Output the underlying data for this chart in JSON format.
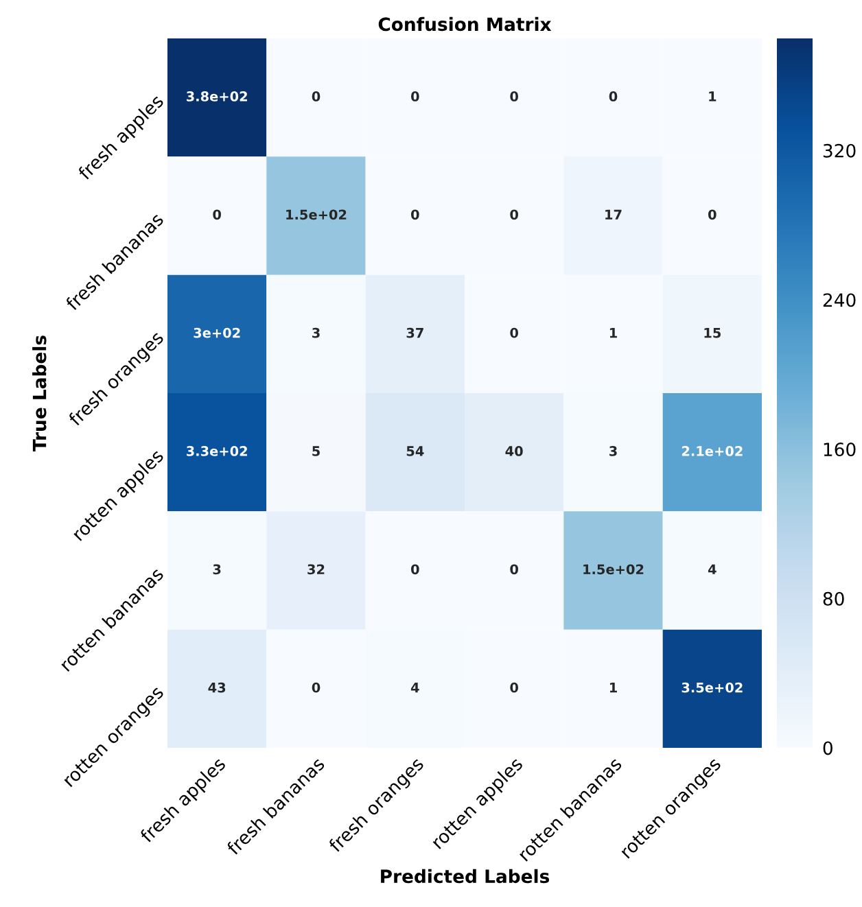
{
  "chart_data": {
    "type": "heatmap",
    "title": "Confusion Matrix",
    "xlabel": "Predicted Labels",
    "ylabel": "True Labels",
    "categories": [
      "fresh apples",
      "fresh bananas",
      "fresh oranges",
      "rotten apples",
      "rotten bananas",
      "rotten oranges"
    ],
    "y_categories": [
      "fresh apples",
      "fresh bananas",
      "fresh oranges",
      "rotten apples",
      "rotten bananas",
      "rotten oranges"
    ],
    "cells": [
      [
        380,
        0,
        0,
        0,
        0,
        1
      ],
      [
        0,
        150,
        0,
        0,
        17,
        0
      ],
      [
        300,
        3,
        37,
        0,
        1,
        15
      ],
      [
        330,
        5,
        54,
        40,
        3,
        210
      ],
      [
        3,
        32,
        0,
        0,
        150,
        4
      ],
      [
        43,
        0,
        4,
        0,
        1,
        350
      ]
    ],
    "cell_labels": [
      [
        "3.8e+02",
        "0",
        "0",
        "0",
        "0",
        "1"
      ],
      [
        "0",
        "1.5e+02",
        "0",
        "0",
        "17",
        "0"
      ],
      [
        "3e+02",
        "3",
        "37",
        "0",
        "1",
        "15"
      ],
      [
        "3.3e+02",
        "5",
        "54",
        "40",
        "3",
        "2.1e+02"
      ],
      [
        "3",
        "32",
        "0",
        "0",
        "1.5e+02",
        "4"
      ],
      [
        "43",
        "0",
        "4",
        "0",
        "1",
        "3.5e+02"
      ]
    ],
    "clim": [
      0,
      380
    ],
    "cticks": [
      0,
      80,
      160,
      240,
      320
    ],
    "grid": false
  }
}
